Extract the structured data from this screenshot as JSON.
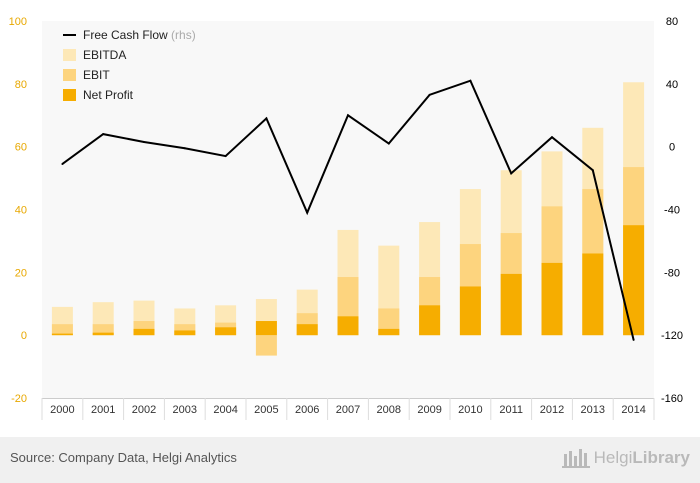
{
  "chart_data": {
    "type": "bar",
    "categories": [
      "2000",
      "2001",
      "2002",
      "2003",
      "2004",
      "2005",
      "2006",
      "2007",
      "2008",
      "2009",
      "2010",
      "2011",
      "2012",
      "2013",
      "2014"
    ],
    "series": [
      {
        "name": "EBITDA",
        "type": "bar",
        "axis": "left",
        "color": "#fde8b7",
        "values": [
          9,
          10.5,
          11,
          8.5,
          9.5,
          11.5,
          14.5,
          33.5,
          28.5,
          36,
          46.5,
          52.5,
          58.5,
          66,
          80.5
        ]
      },
      {
        "name": "EBIT",
        "type": "bar",
        "axis": "left",
        "color": "#fdd47e",
        "values": [
          3.5,
          3.5,
          4.5,
          3.5,
          4,
          -6.5,
          7,
          18.5,
          8.5,
          18.5,
          29,
          32.5,
          41,
          46.5,
          53.5
        ]
      },
      {
        "name": "Net Profit",
        "type": "bar",
        "axis": "left",
        "color": "#f6ad00",
        "values": [
          0.5,
          0.8,
          2,
          1.5,
          2.5,
          4.5,
          3.5,
          6,
          2,
          9.5,
          15.5,
          19.5,
          23,
          26,
          35
        ]
      },
      {
        "name": "Free Cash Flow",
        "label_suffix": "(rhs)",
        "type": "line",
        "axis": "right",
        "color": "#000000",
        "values": [
          -11,
          8,
          3,
          -1,
          -6,
          18,
          -42,
          20,
          2,
          33,
          42,
          -17,
          6,
          -15,
          -123
        ]
      }
    ],
    "left_axis": {
      "min": -20,
      "max": 100,
      "ticks": [
        -20,
        0,
        20,
        40,
        60,
        80,
        100
      ],
      "color": "#e8a800"
    },
    "right_axis": {
      "min": -160,
      "max": 80,
      "ticks": [
        -160,
        -120,
        -80,
        -40,
        0,
        40,
        80
      ],
      "color": "#000000"
    },
    "legend": {
      "placement": "top-left",
      "items": [
        {
          "label": "Free Cash Flow",
          "suffix": "(rhs)",
          "kind": "line",
          "color": "#000000"
        },
        {
          "label": "EBITDA",
          "kind": "box",
          "color": "#fde8b7"
        },
        {
          "label": "EBIT",
          "kind": "box",
          "color": "#fdd47e"
        },
        {
          "label": "Net Profit",
          "kind": "box",
          "color": "#f6ad00"
        }
      ]
    },
    "grid": false
  },
  "footer": {
    "source": "Source: Company Data, Helgi Analytics",
    "brand_part1": "Helgi",
    "brand_part2": "Library",
    "brand_icon": "helgi-library-logo-icon"
  }
}
